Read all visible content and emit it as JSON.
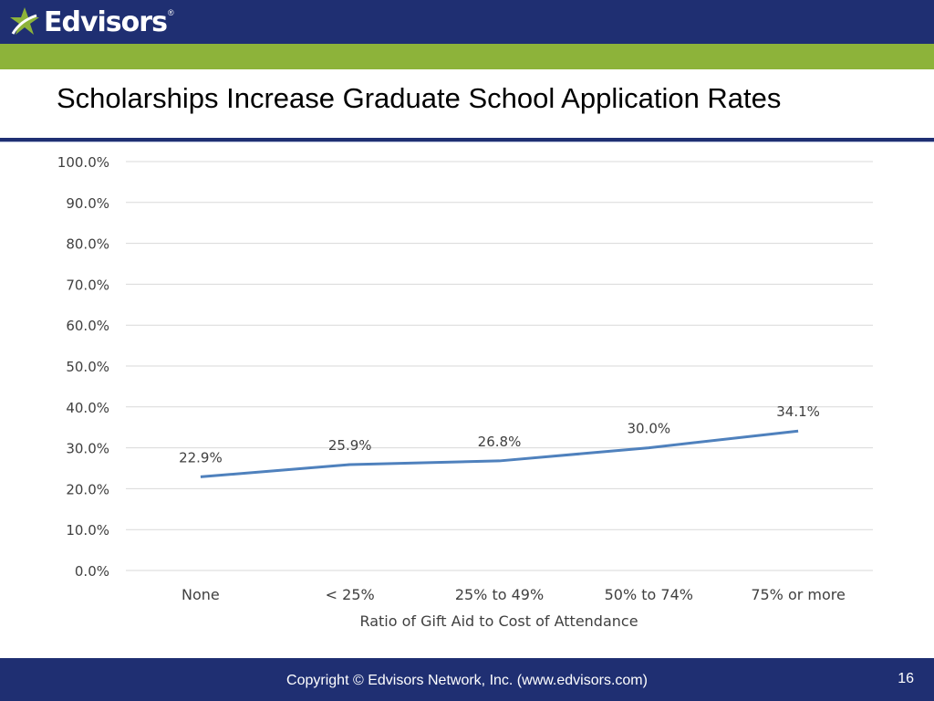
{
  "header": {
    "logo_text": "Edvisors",
    "logo_mark": "®",
    "logo_icon": "star-swoosh-icon",
    "colors": {
      "navy": "#1f2f72",
      "green": "#8db33a",
      "line": "#4f81bd"
    }
  },
  "slide": {
    "title": "Scholarships Increase Graduate School Application Rates"
  },
  "chart_data": {
    "type": "line",
    "categories": [
      "None",
      "< 25%",
      "25% to 49%",
      "50% to 74%",
      "75% or more"
    ],
    "values": [
      22.9,
      25.9,
      26.8,
      30.0,
      34.1
    ],
    "value_labels": [
      "22.9%",
      "25.9%",
      "26.8%",
      "30.0%",
      "34.1%"
    ],
    "title": "",
    "xlabel": "Ratio of Gift Aid to Cost of Attendance",
    "ylabel": "",
    "ylim": [
      0,
      100
    ],
    "y_ticks": [
      "0.0%",
      "10.0%",
      "20.0%",
      "30.0%",
      "40.0%",
      "50.0%",
      "60.0%",
      "70.0%",
      "80.0%",
      "90.0%",
      "100.0%"
    ],
    "grid": true,
    "legend": "none"
  },
  "footer": {
    "copyright": "Copyright © Edvisors Network, Inc. (www.edvisors.com)",
    "page_number": "16"
  }
}
